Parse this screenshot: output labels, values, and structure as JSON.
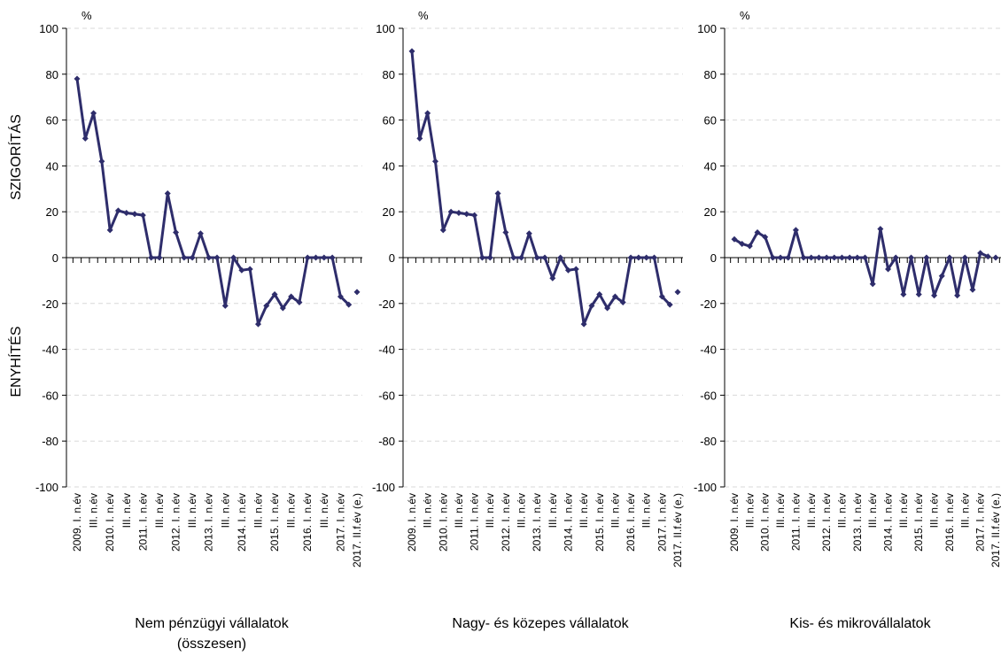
{
  "chart_data": [
    {
      "type": "line",
      "title": [
        "Nem pénzügyi vállalatok",
        "(összesen)"
      ],
      "unit": "%",
      "ylabel_top": "SZIGORÍTÁS",
      "ylabel_bottom": "ENYHÍTÉS",
      "categories": [
        "2009. I. n.év",
        null,
        "III. n.év",
        null,
        "2010. I. n.év",
        null,
        "III. n.év",
        null,
        "2011. I. n.év",
        null,
        "III. n.év",
        null,
        "2012. I. n.év",
        null,
        "III. n.év",
        null,
        "2013. I. n.év",
        null,
        "III. n.év",
        null,
        "2014. I. n.év",
        null,
        "III. n.év",
        null,
        "2015. I. n.év",
        null,
        "III. n.év",
        null,
        "2016. I. n.év",
        null,
        "III. n.év",
        null,
        "2017. I. n.év",
        null,
        "2017. II.f.év (e.)"
      ],
      "series": [
        {
          "color": "#2e2d6b",
          "values": [
            78,
            52,
            63,
            42,
            12,
            20.5,
            19.5,
            19,
            18.5,
            0,
            0,
            28,
            11,
            0,
            0,
            10.5,
            0,
            0,
            -21,
            0,
            -5.5,
            -5,
            -29,
            -21,
            -16,
            -22,
            -17,
            -19.5,
            0,
            0,
            0,
            0,
            -17,
            -20.5,
            null
          ]
        },
        {
          "color": "#2e2d6b",
          "values": [
            null,
            null,
            null,
            null,
            null,
            null,
            null,
            null,
            null,
            null,
            null,
            null,
            null,
            null,
            null,
            null,
            null,
            null,
            null,
            null,
            null,
            null,
            null,
            null,
            null,
            null,
            null,
            null,
            null,
            null,
            null,
            null,
            null,
            null,
            -15
          ]
        }
      ],
      "ylim": [
        -100,
        100
      ],
      "yticks": [
        -100,
        -80,
        -60,
        -40,
        -20,
        0,
        20,
        40,
        60,
        80,
        100
      ],
      "grid": true
    },
    {
      "type": "line",
      "title": [
        "Nagy- és közepes vállalatok"
      ],
      "unit": "%",
      "categories": [
        "2009. I. n.év",
        null,
        "III. n.év",
        null,
        "2010. I. n.év",
        null,
        "III. n.év",
        null,
        "2011. I. n.év",
        null,
        "III. n.év",
        null,
        "2012. I. n.év",
        null,
        "III. n.év",
        null,
        "2013. I. n.év",
        null,
        "III. n.év",
        null,
        "2014. I. n.év",
        null,
        "III. n.év",
        null,
        "2015. I. n.év",
        null,
        "III. n.év",
        null,
        "2016. I. n.év",
        null,
        "III. n.év",
        null,
        "2017. I. n.év",
        null,
        "2017. II.f.év (e.)"
      ],
      "series": [
        {
          "color": "#2e2d6b",
          "values": [
            90,
            52,
            63,
            42,
            12,
            20,
            19.5,
            19,
            18.5,
            0,
            0,
            28,
            11,
            0,
            0,
            10.5,
            0,
            0,
            -9,
            0,
            -5.5,
            -5,
            -29,
            -21,
            -16,
            -22,
            -17,
            -19.5,
            0,
            0,
            0,
            0,
            -17,
            -20.5,
            null
          ]
        },
        {
          "color": "#2e2d6b",
          "values": [
            null,
            null,
            null,
            null,
            null,
            null,
            null,
            null,
            null,
            null,
            null,
            null,
            null,
            null,
            null,
            null,
            null,
            null,
            null,
            null,
            null,
            null,
            null,
            null,
            null,
            null,
            null,
            null,
            null,
            null,
            null,
            null,
            null,
            null,
            -15
          ]
        }
      ],
      "ylim": [
        -100,
        100
      ],
      "yticks": [
        -100,
        -80,
        -60,
        -40,
        -20,
        0,
        20,
        40,
        60,
        80,
        100
      ],
      "grid": true
    },
    {
      "type": "line",
      "title": [
        "Kis- és mikrovállalatok"
      ],
      "unit": "%",
      "categories": [
        "2009. I. n.év",
        null,
        "III. n.év",
        null,
        "2010. I. n.év",
        null,
        "III. n.év",
        null,
        "2011. I. n.év",
        null,
        "III. n.év",
        null,
        "2012. I. n.év",
        null,
        "III. n.év",
        null,
        "2013. I. n.év",
        null,
        "III. n.év",
        null,
        "2014. I. n.év",
        null,
        "III. n.év",
        null,
        "2015. I. n.év",
        null,
        "III. n.év",
        null,
        "2016. I. n.év",
        null,
        "III. n.év",
        null,
        "2017. I. n.év",
        null,
        "2017. II.f.év (e.)"
      ],
      "series": [
        {
          "color": "#2e2d6b",
          "values": [
            8,
            6,
            5,
            11,
            9,
            0,
            0,
            0,
            12,
            0,
            0,
            0,
            0,
            0,
            0,
            0,
            0,
            0,
            -11.5,
            12.5,
            -5,
            0,
            -16,
            0,
            -16,
            0,
            -16.5,
            -8,
            0,
            -16.5,
            0,
            -14,
            2,
            0.5,
            null
          ]
        },
        {
          "color": "#2e2d6b",
          "values": [
            null,
            null,
            null,
            null,
            null,
            null,
            null,
            null,
            null,
            null,
            null,
            null,
            null,
            null,
            null,
            null,
            null,
            null,
            null,
            null,
            null,
            null,
            null,
            null,
            null,
            null,
            null,
            null,
            null,
            null,
            null,
            null,
            null,
            null,
            0
          ]
        }
      ],
      "ylim": [
        -100,
        100
      ],
      "yticks": [
        -100,
        -80,
        -60,
        -40,
        -20,
        0,
        20,
        40,
        60,
        80,
        100
      ],
      "grid": true
    }
  ]
}
